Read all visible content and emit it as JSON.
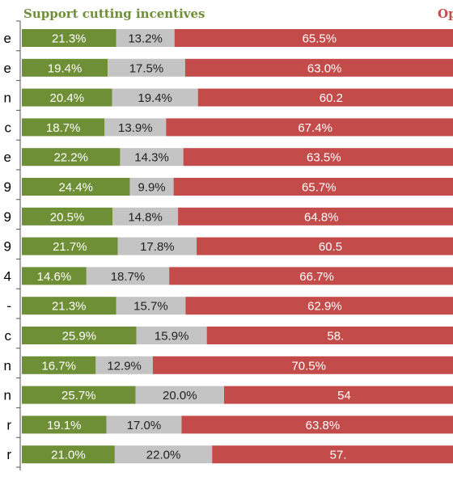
{
  "chart_data": {
    "type": "bar",
    "stacked": true,
    "orientation": "horizontal",
    "normalized_percent": true,
    "legend": {
      "support_label": "Support cutting incentives",
      "oppose_label": "Op"
    },
    "categories": [
      "e",
      "e",
      "n",
      "c",
      "e",
      "9",
      "9",
      "9",
      "4",
      "-",
      "c",
      "n",
      "n",
      "r",
      "r"
    ],
    "series": [
      {
        "name": "Support cutting incentives",
        "color": "#6f8f37",
        "values": [
          21.3,
          19.4,
          20.4,
          18.7,
          22.2,
          24.4,
          20.5,
          21.7,
          14.6,
          21.3,
          25.9,
          16.7,
          25.7,
          19.1,
          21.0
        ],
        "labels": [
          "21.3%",
          "19.4%",
          "20.4%",
          "18.7%",
          "22.2%",
          "24.4%",
          "20.5%",
          "21.7%",
          "14.6%",
          "21.3%",
          "25.9%",
          "16.7%",
          "25.7%",
          "19.1%",
          "21.0%"
        ]
      },
      {
        "color": "#c4c4c4",
        "values": [
          13.2,
          17.5,
          19.4,
          13.9,
          14.3,
          9.9,
          14.8,
          17.8,
          18.7,
          15.7,
          15.9,
          12.9,
          20.0,
          17.0,
          22.0
        ],
        "labels": [
          "13.2%",
          "17.5%",
          "19.4%",
          "13.9%",
          "14.3%",
          "9.9%",
          "14.8%",
          "17.8%",
          "18.7%",
          "15.7%",
          "15.9%",
          "12.9%",
          "20.0%",
          "17.0%",
          "22.0%"
        ]
      },
      {
        "color": "#c34c4a",
        "values": [
          65.5,
          63.0,
          60.2,
          67.4,
          63.5,
          65.7,
          64.8,
          60.5,
          66.7,
          62.9,
          58.2,
          70.5,
          54.3,
          63.8,
          57.0
        ],
        "labels": [
          "65.5%",
          "63.0%",
          "60.2",
          "67.4%",
          "63.5%",
          "65.7%",
          "64.8%",
          "60.5",
          "66.7%",
          "62.9%",
          "58.",
          "70.5%",
          "54",
          "63.8%",
          "57."
        ]
      }
    ]
  }
}
